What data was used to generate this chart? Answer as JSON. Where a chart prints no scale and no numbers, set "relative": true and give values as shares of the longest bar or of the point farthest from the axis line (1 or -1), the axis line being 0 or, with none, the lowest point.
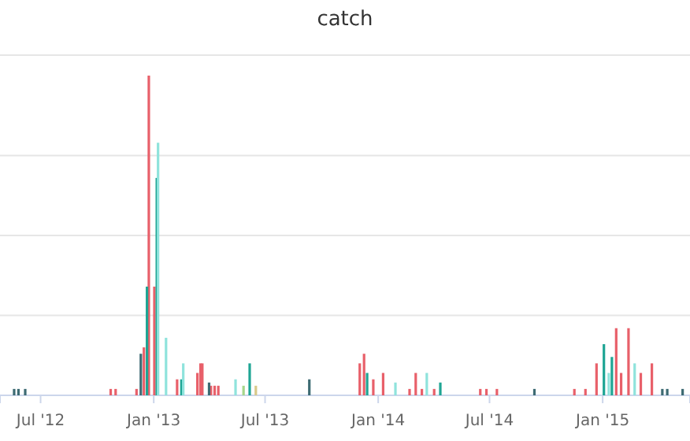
{
  "chart_data": {
    "type": "bar",
    "title": "catch",
    "relative": true,
    "grid": true,
    "xlim": [
      "2012-04-26",
      "2015-05-23"
    ],
    "xticks": [
      {
        "value": "2012-07-01",
        "label": "Jul '12"
      },
      {
        "value": "2013-01-01",
        "label": "Jan '13"
      },
      {
        "value": "2013-07-01",
        "label": "Jul '13"
      },
      {
        "value": "2014-01-01",
        "label": "Jan '14"
      },
      {
        "value": "2014-07-01",
        "label": "Jul '14"
      },
      {
        "value": "2015-01-01",
        "label": "Jan '15"
      }
    ],
    "series": [
      {
        "color": "#e8606a",
        "x": [
          "2012-10-23",
          "2012-10-31",
          "2012-12-04",
          "2012-12-16",
          "2012-12-24",
          "2013-01-02",
          "2013-02-08",
          "2013-03-13",
          "2013-03-18",
          "2013-03-21",
          "2013-04-04",
          "2013-04-10",
          "2013-04-16",
          "2013-12-02",
          "2013-12-09",
          "2013-12-24",
          "2014-01-09",
          "2014-02-21",
          "2014-03-03",
          "2014-03-13",
          "2014-04-02",
          "2014-06-16",
          "2014-06-26",
          "2014-07-13",
          "2014-11-16",
          "2014-12-04",
          "2014-12-22",
          "2015-01-23",
          "2015-01-31",
          "2015-02-12",
          "2015-03-04",
          "2015-03-22"
        ],
        "values": [
          0.02,
          0.02,
          0.02,
          0.15,
          1.0,
          0.34,
          0.05,
          0.07,
          0.1,
          0.1,
          0.03,
          0.03,
          0.03,
          0.1,
          0.13,
          0.05,
          0.07,
          0.02,
          0.07,
          0.02,
          0.02,
          0.02,
          0.02,
          0.02,
          0.02,
          0.02,
          0.1,
          0.21,
          0.07,
          0.21,
          0.07,
          0.1
        ]
      },
      {
        "color": "#1fa594",
        "x": [
          "2012-12-21",
          "2013-01-06",
          "2013-02-15",
          "2013-06-06",
          "2013-12-14",
          "2014-04-12",
          "2015-01-03",
          "2015-01-16"
        ],
        "values": [
          0.34,
          0.68,
          0.05,
          0.1,
          0.07,
          0.04,
          0.16,
          0.12
        ]
      },
      {
        "color": "#8fe3dc",
        "x": [
          "2013-01-08",
          "2013-01-21",
          "2013-02-18",
          "2013-05-14",
          "2014-01-29",
          "2014-03-21",
          "2015-01-11",
          "2015-02-22"
        ],
        "values": [
          0.79,
          0.18,
          0.1,
          0.05,
          0.04,
          0.07,
          0.07,
          0.1
        ]
      },
      {
        "color": "#3d6b73",
        "x": [
          "2012-05-19",
          "2012-05-26",
          "2012-06-06",
          "2012-12-11",
          "2013-04-01",
          "2013-09-11",
          "2014-09-12",
          "2015-04-08",
          "2015-04-16",
          "2015-05-11"
        ],
        "values": [
          0.02,
          0.02,
          0.02,
          0.13,
          0.04,
          0.05,
          0.02,
          0.02,
          0.02,
          0.02
        ]
      },
      {
        "color": "#a6d68a",
        "x": [
          "2013-05-27"
        ],
        "values": [
          0.03
        ]
      },
      {
        "color": "#d8c98a",
        "x": [
          "2013-06-16"
        ],
        "values": [
          0.03
        ]
      }
    ]
  }
}
